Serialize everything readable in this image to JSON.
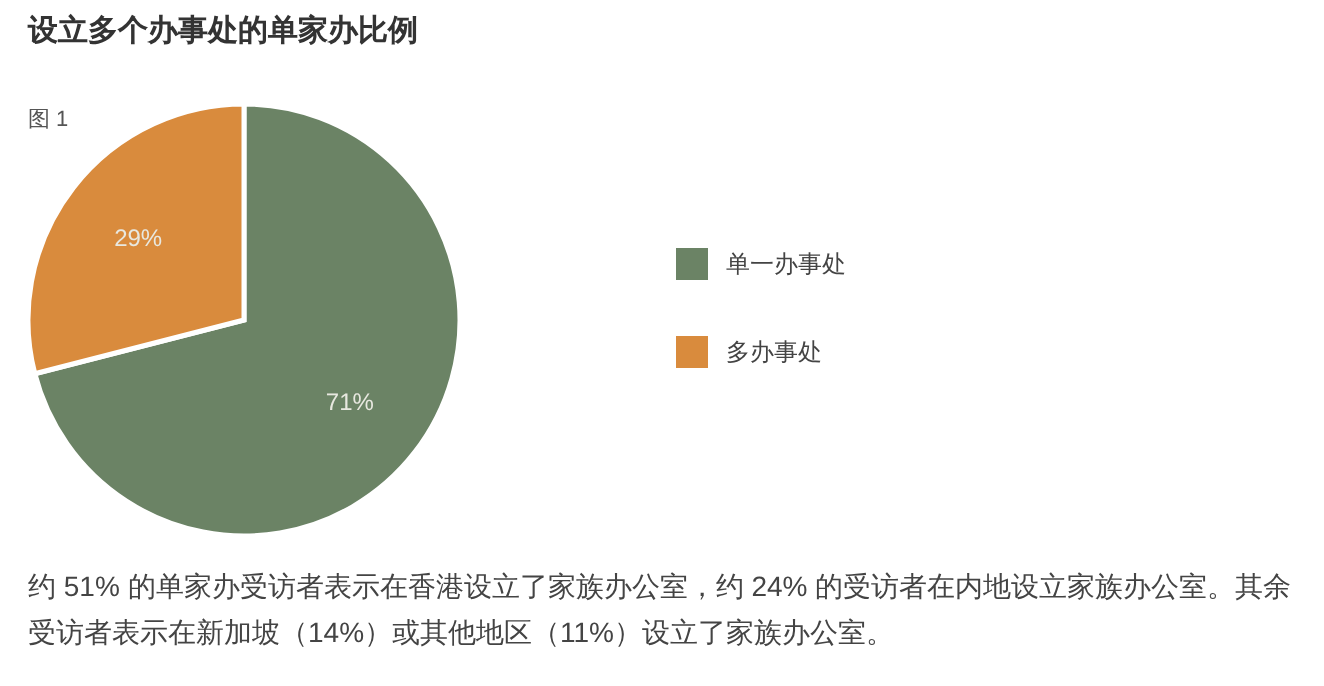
{
  "chart_data": {
    "type": "pie",
    "title": "设立多个办事处的单家办比例",
    "categories": [
      "单一办事处",
      "多办事处"
    ],
    "values": [
      71,
      29
    ],
    "colors": [
      "#6b8365",
      "#d98b3d"
    ],
    "value_labels": [
      "71%",
      "29%"
    ],
    "legend": "right",
    "annotations": [
      "图 1",
      "约 51% 的单家办受访者表示在香港设立了家族办公室，约 24% 的受访者在内地设立家族办公室。其余受访者表示在新加坡（14%）或其他地区（11%）设立了家族办公室。"
    ]
  }
}
